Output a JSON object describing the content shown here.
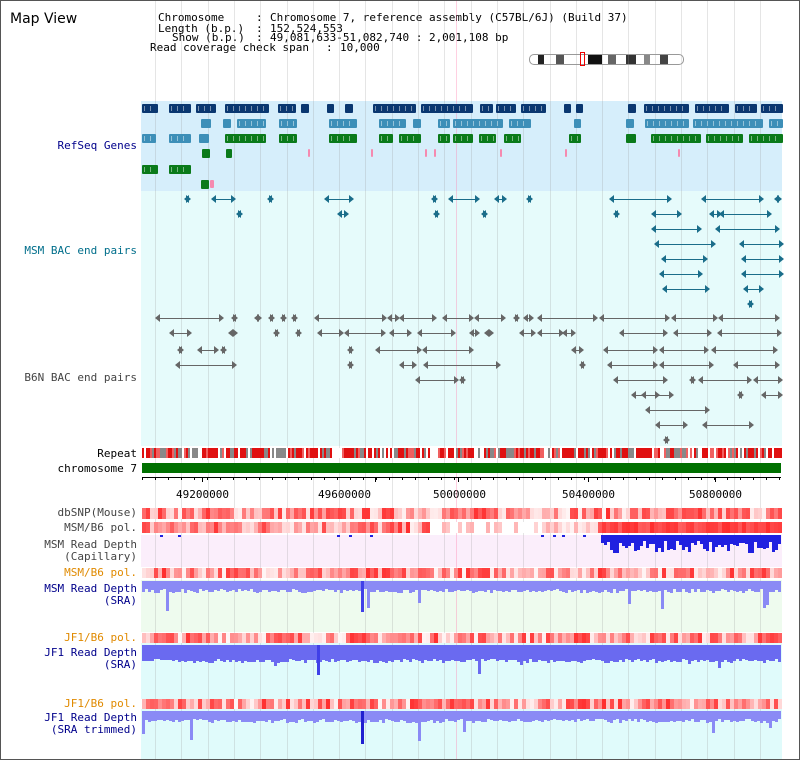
{
  "view_title": "Map View",
  "info": {
    "chromosome_key": "Chromosome",
    "chromosome_val": "Chromosome 7, reference assembly (C57BL/6J) (Build 37)",
    "length_key": "Length (b.p.)",
    "length_val": "152,524,553",
    "show_key": "Show (b.p.)",
    "show_val": "49,081,633-51,082,740 : 2,001,108 bp",
    "coverage_key": "Read coverage check span",
    "coverage_val": "10,000"
  },
  "axis_ticks": [
    "49200000",
    "49600000",
    "50000000",
    "50400000",
    "50800000"
  ],
  "tracks": {
    "refseq": "RefSeq Genes",
    "msm_bac": "MSM BAC end pairs",
    "b6n_bac": "B6N BAC end pairs",
    "repeat": "Repeat",
    "chromosome": "chromosome 7",
    "dbsnp": "dbSNP(Mouse)",
    "msm_pol_1": "MSM/B6 pol.",
    "msm_depth_cap": "MSM Read Depth\n(Capillary)",
    "msm_pol_2": "MSM/B6 pol.",
    "msm_depth_sra": "MSM Read Depth\n(SRA)",
    "jf1_pol_1": "JF1/B6 pol.",
    "jf1_depth_sra": "JF1 Read Depth\n(SRA)",
    "jf1_pol_2": "JF1/B6 pol.",
    "jf1_depth_trim": "JF1 Read Depth\n(SRA trimmed)"
  },
  "colors": {
    "refseq_bg": "#d6eefb",
    "bac_bg": "#e6fbfb",
    "depth_bg_pink": "#fbeefb",
    "depth_bg_green": "#eefbee",
    "depth_bg_cyan": "#e0fbfb",
    "navy": "#0a3770",
    "steel": "#3d8fb8",
    "green": "#0a7a1a",
    "pink": "#f58ab0",
    "teal": "#1a6d8a",
    "gray": "#666666",
    "chrom_green": "#007000",
    "depth_blue": "#4a4af0",
    "orange": "#e08a00"
  }
}
